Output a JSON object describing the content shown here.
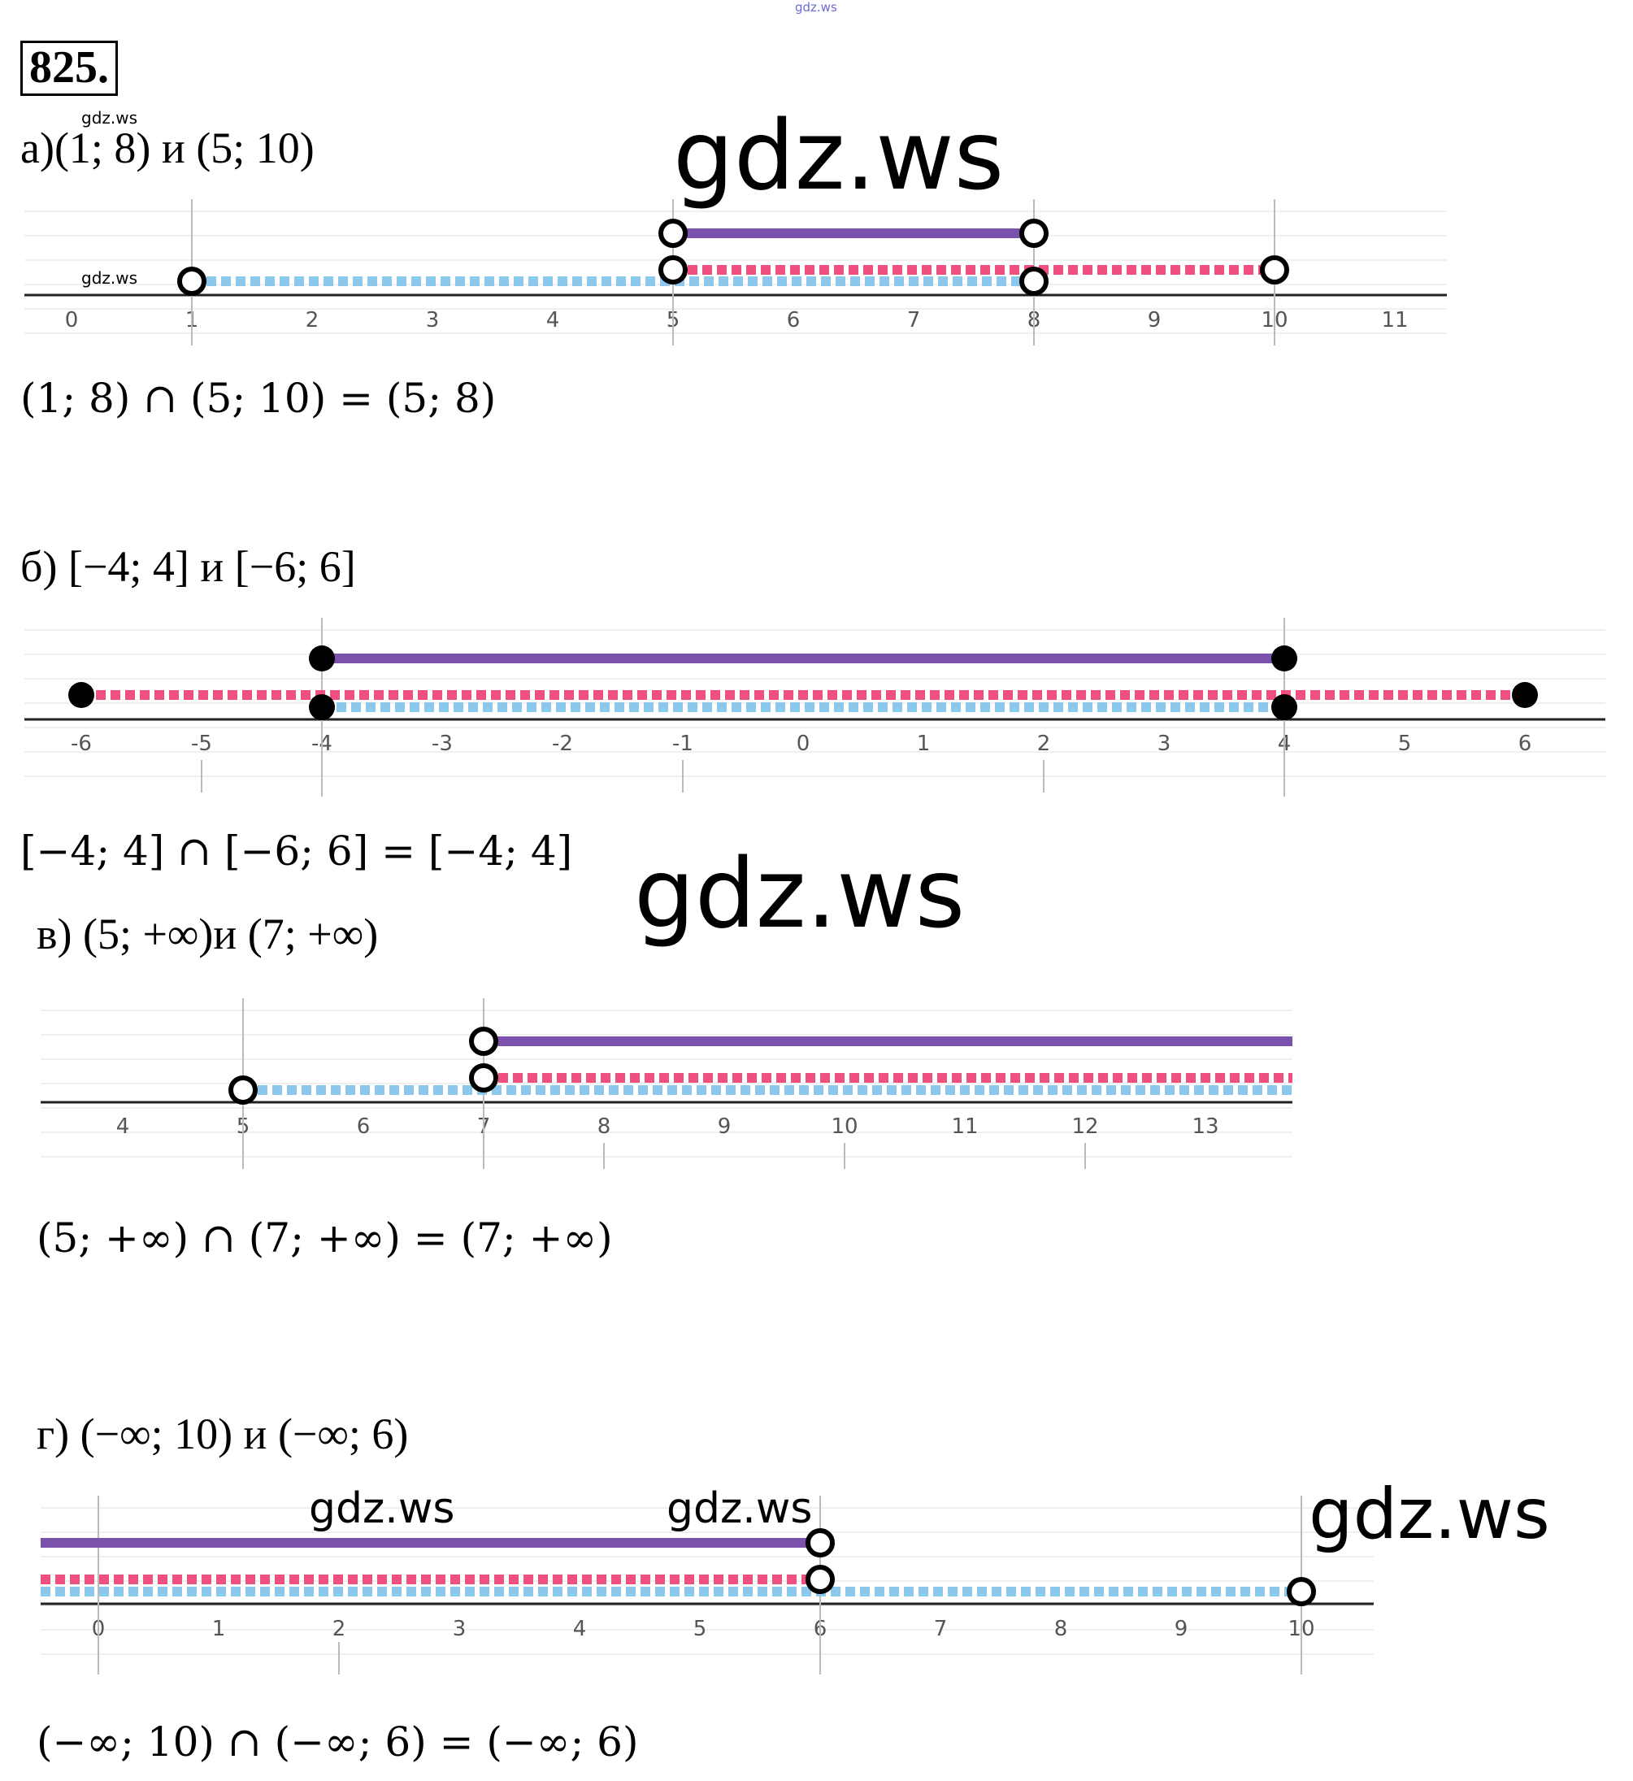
{
  "header": {
    "problem_number": "825.",
    "top_watermark": "gdz.ws"
  },
  "watermark_text": "gdz.ws",
  "tasks": [
    {
      "label": "а)(1; 8) и (5; 10)",
      "result": "(1; 8)  ∩  (5; 10) = (5; 8)",
      "axis_ticks": [
        "0",
        "1",
        "2",
        "3",
        "4",
        "5",
        "6",
        "7",
        "8",
        "9",
        "10",
        "11"
      ],
      "intervals": [
        {
          "role": "intersection",
          "color": "#7b52ab",
          "from": 5,
          "to": 8,
          "left": "open",
          "right": "open"
        },
        {
          "role": "second",
          "color": "#f0507f",
          "from": 5,
          "to": 10,
          "left": "open",
          "right": "open"
        },
        {
          "role": "first",
          "color": "#8cc8ec",
          "from": 1,
          "to": 8,
          "left": "open",
          "right": "open"
        }
      ]
    },
    {
      "label": "б) [−4; 4] и [−6; 6]",
      "result": "[−4; 4]  ∩  [−6; 6] = [−4; 4]",
      "axis_ticks": [
        "-6",
        "-5",
        "-4",
        "-3",
        "-2",
        "-1",
        "0",
        "1",
        "2",
        "3",
        "4",
        "5",
        "6"
      ],
      "intervals": [
        {
          "role": "intersection",
          "color": "#7b52ab",
          "from": -4,
          "to": 4,
          "left": "closed",
          "right": "closed"
        },
        {
          "role": "second",
          "color": "#f0507f",
          "from": -6,
          "to": 6,
          "left": "closed",
          "right": "closed"
        },
        {
          "role": "first",
          "color": "#8cc8ec",
          "from": -4,
          "to": 4,
          "left": "closed",
          "right": "closed"
        }
      ]
    },
    {
      "label": "в)  (5; +∞)и (7; +∞)",
      "result": "(5; +∞) ∩  (7; +∞) = (7; +∞)",
      "axis_ticks": [
        "4",
        "5",
        "6",
        "7",
        "8",
        "9",
        "10",
        "11",
        "12",
        "13"
      ],
      "intervals": [
        {
          "role": "intersection",
          "color": "#7b52ab",
          "from": 7,
          "to": "+∞",
          "left": "open",
          "right": "none"
        },
        {
          "role": "second",
          "color": "#f0507f",
          "from": 7,
          "to": "+∞",
          "left": "open",
          "right": "none"
        },
        {
          "role": "first",
          "color": "#8cc8ec",
          "from": 5,
          "to": "+∞",
          "left": "open",
          "right": "none"
        }
      ]
    },
    {
      "label": "г) (−∞; 10) и (−∞; 6)",
      "result": "(−∞; 10)  ∩  (−∞; 6) = (−∞; 6)",
      "axis_ticks": [
        "0",
        "1",
        "2",
        "3",
        "4",
        "5",
        "6",
        "7",
        "8",
        "9",
        "10"
      ],
      "intervals": [
        {
          "role": "intersection",
          "color": "#7b52ab",
          "from": "−∞",
          "to": 6,
          "left": "none",
          "right": "open"
        },
        {
          "role": "second",
          "color": "#f0507f",
          "from": "−∞",
          "to": 6,
          "left": "none",
          "right": "open"
        },
        {
          "role": "first",
          "color": "#8cc8ec",
          "from": "−∞",
          "to": 10,
          "left": "none",
          "right": "open"
        }
      ]
    }
  ]
}
